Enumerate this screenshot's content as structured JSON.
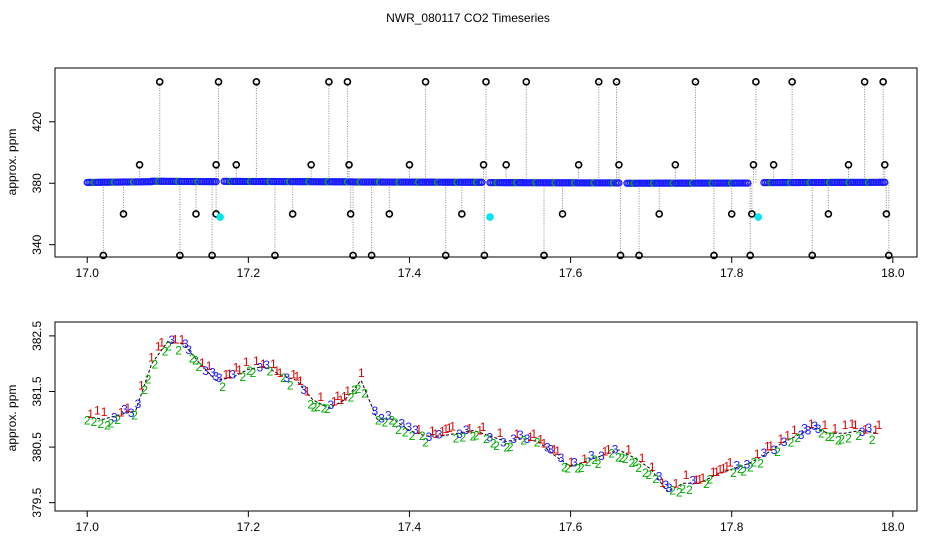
{
  "title": "NWR_080117  CO2 Timeseries",
  "chart_data": [
    {
      "type": "scatter",
      "panel": "top",
      "ylabel": "approx. ppm",
      "xlabel": "",
      "xlim": [
        16.96,
        18.03
      ],
      "ylim": [
        332,
        455
      ],
      "xticks": [
        17.0,
        17.2,
        17.4,
        17.6,
        17.8,
        18.0
      ],
      "xtick_labels": [
        "17.0",
        "17.2",
        "17.4",
        "17.6",
        "17.8",
        "18.0"
      ],
      "yticks": [
        340,
        380,
        420
      ],
      "ytick_labels": [
        "340",
        "380",
        "420"
      ],
      "baseline_series": {
        "name": "flask segments",
        "segments": [
          {
            "x0": 17.0,
            "x1": 17.08,
            "y0": 380.5,
            "y1": 381.0
          },
          {
            "x0": 17.08,
            "x1": 17.16,
            "y0": 381.3,
            "y1": 381.0
          },
          {
            "x0": 17.17,
            "x1": 17.33,
            "y0": 381.2,
            "y1": 380.9
          },
          {
            "x0": 17.33,
            "x1": 17.49,
            "y0": 380.8,
            "y1": 380.6
          },
          {
            "x0": 17.5,
            "x1": 17.66,
            "y0": 380.4,
            "y1": 380.2
          },
          {
            "x0": 17.67,
            "x1": 17.82,
            "y0": 380.0,
            "y1": 380.1
          },
          {
            "x0": 17.84,
            "x1": 17.99,
            "y0": 380.4,
            "y1": 380.6
          }
        ]
      },
      "outliers": [
        {
          "x": 17.02,
          "y": 333
        },
        {
          "x": 17.045,
          "y": 360
        },
        {
          "x": 17.065,
          "y": 392
        },
        {
          "x": 17.09,
          "y": 446
        },
        {
          "x": 17.115,
          "y": 333
        },
        {
          "x": 17.135,
          "y": 360
        },
        {
          "x": 17.155,
          "y": 333
        },
        {
          "x": 17.16,
          "y": 392
        },
        {
          "x": 17.16,
          "y": 360
        },
        {
          "x": 17.163,
          "y": 446
        },
        {
          "x": 17.185,
          "y": 392
        },
        {
          "x": 17.21,
          "y": 446
        },
        {
          "x": 17.233,
          "y": 333
        },
        {
          "x": 17.255,
          "y": 360
        },
        {
          "x": 17.278,
          "y": 392
        },
        {
          "x": 17.3,
          "y": 446
        },
        {
          "x": 17.323,
          "y": 446
        },
        {
          "x": 17.325,
          "y": 392
        },
        {
          "x": 17.327,
          "y": 360
        },
        {
          "x": 17.33,
          "y": 333
        },
        {
          "x": 17.353,
          "y": 333
        },
        {
          "x": 17.375,
          "y": 360
        },
        {
          "x": 17.4,
          "y": 392
        },
        {
          "x": 17.42,
          "y": 446
        },
        {
          "x": 17.445,
          "y": 333
        },
        {
          "x": 17.465,
          "y": 360
        },
        {
          "x": 17.492,
          "y": 392
        },
        {
          "x": 17.493,
          "y": 333
        },
        {
          "x": 17.495,
          "y": 446
        },
        {
          "x": 17.52,
          "y": 392
        },
        {
          "x": 17.545,
          "y": 446
        },
        {
          "x": 17.567,
          "y": 333
        },
        {
          "x": 17.59,
          "y": 360
        },
        {
          "x": 17.61,
          "y": 392
        },
        {
          "x": 17.635,
          "y": 446
        },
        {
          "x": 17.657,
          "y": 446
        },
        {
          "x": 17.66,
          "y": 392
        },
        {
          "x": 17.662,
          "y": 333
        },
        {
          "x": 17.685,
          "y": 333
        },
        {
          "x": 17.71,
          "y": 360
        },
        {
          "x": 17.73,
          "y": 392
        },
        {
          "x": 17.755,
          "y": 446
        },
        {
          "x": 17.778,
          "y": 333
        },
        {
          "x": 17.8,
          "y": 360
        },
        {
          "x": 17.823,
          "y": 333
        },
        {
          "x": 17.825,
          "y": 360
        },
        {
          "x": 17.827,
          "y": 392
        },
        {
          "x": 17.83,
          "y": 446
        },
        {
          "x": 17.852,
          "y": 392
        },
        {
          "x": 17.875,
          "y": 446
        },
        {
          "x": 17.9,
          "y": 333
        },
        {
          "x": 17.92,
          "y": 360
        },
        {
          "x": 17.945,
          "y": 392
        },
        {
          "x": 17.965,
          "y": 446
        },
        {
          "x": 17.988,
          "y": 446
        },
        {
          "x": 17.99,
          "y": 392
        },
        {
          "x": 17.992,
          "y": 360
        },
        {
          "x": 17.995,
          "y": 333
        }
      ],
      "highlighted": [
        {
          "x": 17.165,
          "y": 358
        },
        {
          "x": 17.5,
          "y": 358
        },
        {
          "x": 17.833,
          "y": 358
        }
      ],
      "colors": {
        "baseline": "#1a1aff",
        "outlier": "#000000",
        "highlight": "#00e5ee",
        "connector": "#888888",
        "accent_green": "#00aa00"
      }
    },
    {
      "type": "scatter",
      "panel": "bottom",
      "ylabel": "approx. ppm",
      "xlabel": "",
      "xlim": [
        16.96,
        18.03
      ],
      "ylim": [
        379.35,
        382.75
      ],
      "xticks": [
        17.0,
        17.2,
        17.4,
        17.6,
        17.8,
        18.0
      ],
      "xtick_labels": [
        "17.0",
        "17.2",
        "17.4",
        "17.6",
        "17.8",
        "18.0"
      ],
      "yticks": [
        379.5,
        380.5,
        381.5,
        382.5
      ],
      "ytick_labels": [
        "379.5",
        "380.5",
        "381.5",
        "382.5"
      ],
      "marker_labels": [
        "1",
        "2",
        "3"
      ],
      "marker_colors": {
        "1": "#dd0000",
        "2": "#00aa00",
        "3": "#1a1aff"
      },
      "trend": [
        {
          "x": 17.0,
          "y": 381.05
        },
        {
          "x": 17.02,
          "y": 381.0
        },
        {
          "x": 17.04,
          "y": 381.08
        },
        {
          "x": 17.06,
          "y": 381.15
        },
        {
          "x": 17.08,
          "y": 382.0
        },
        {
          "x": 17.1,
          "y": 382.4
        },
        {
          "x": 17.12,
          "y": 382.35
        },
        {
          "x": 17.14,
          "y": 382.0
        },
        {
          "x": 17.16,
          "y": 381.7
        },
        {
          "x": 17.18,
          "y": 381.75
        },
        {
          "x": 17.2,
          "y": 381.9
        },
        {
          "x": 17.22,
          "y": 381.95
        },
        {
          "x": 17.24,
          "y": 381.8
        },
        {
          "x": 17.26,
          "y": 381.7
        },
        {
          "x": 17.28,
          "y": 381.35
        },
        {
          "x": 17.3,
          "y": 381.2
        },
        {
          "x": 17.32,
          "y": 381.35
        },
        {
          "x": 17.34,
          "y": 381.7
        },
        {
          "x": 17.36,
          "y": 381.0
        },
        {
          "x": 17.38,
          "y": 381.0
        },
        {
          "x": 17.4,
          "y": 380.8
        },
        {
          "x": 17.42,
          "y": 380.7
        },
        {
          "x": 17.44,
          "y": 380.7
        },
        {
          "x": 17.46,
          "y": 380.75
        },
        {
          "x": 17.48,
          "y": 380.8
        },
        {
          "x": 17.5,
          "y": 380.7
        },
        {
          "x": 17.52,
          "y": 380.6
        },
        {
          "x": 17.54,
          "y": 380.65
        },
        {
          "x": 17.56,
          "y": 380.6
        },
        {
          "x": 17.58,
          "y": 380.35
        },
        {
          "x": 17.6,
          "y": 380.15
        },
        {
          "x": 17.62,
          "y": 380.25
        },
        {
          "x": 17.64,
          "y": 380.35
        },
        {
          "x": 17.66,
          "y": 380.45
        },
        {
          "x": 17.68,
          "y": 380.3
        },
        {
          "x": 17.7,
          "y": 380.1
        },
        {
          "x": 17.72,
          "y": 379.7
        },
        {
          "x": 17.74,
          "y": 379.85
        },
        {
          "x": 17.76,
          "y": 379.85
        },
        {
          "x": 17.78,
          "y": 380.0
        },
        {
          "x": 17.8,
          "y": 380.1
        },
        {
          "x": 17.82,
          "y": 380.2
        },
        {
          "x": 17.84,
          "y": 380.35
        },
        {
          "x": 17.86,
          "y": 380.55
        },
        {
          "x": 17.88,
          "y": 380.7
        },
        {
          "x": 17.9,
          "y": 380.85
        },
        {
          "x": 17.92,
          "y": 380.75
        },
        {
          "x": 17.94,
          "y": 380.75
        },
        {
          "x": 17.96,
          "y": 380.8
        },
        {
          "x": 17.98,
          "y": 380.75
        }
      ]
    }
  ]
}
